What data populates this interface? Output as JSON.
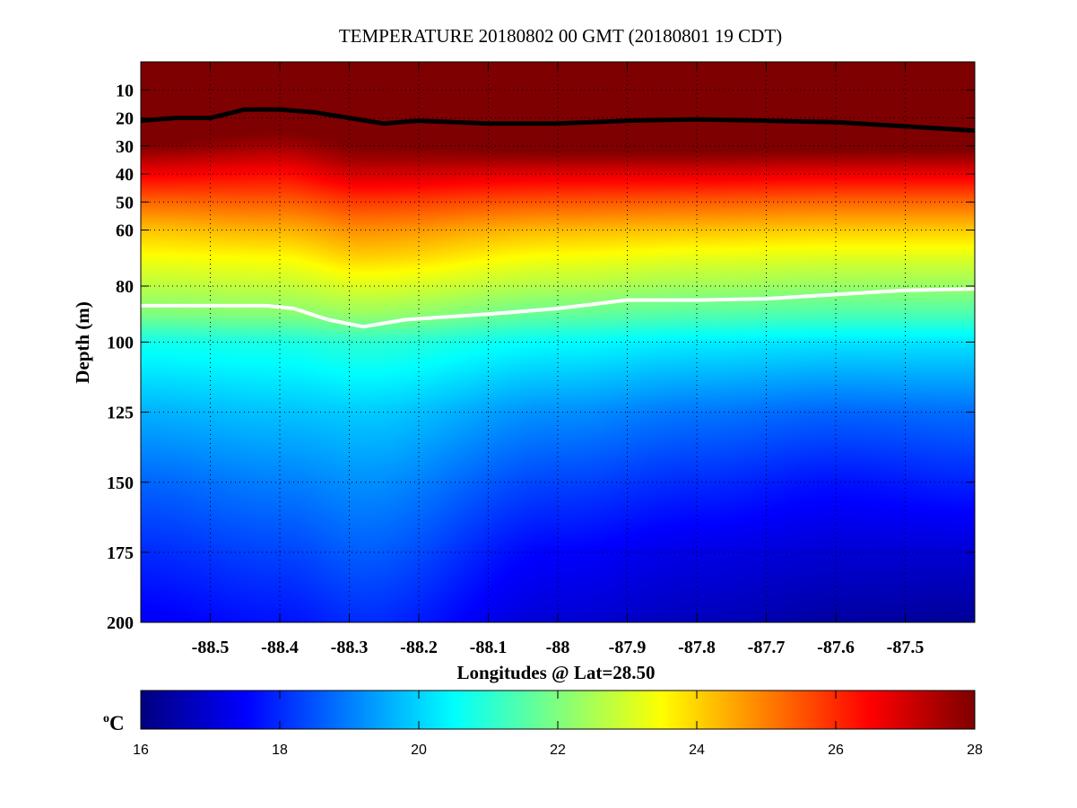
{
  "chart_data": {
    "type": "heatmap",
    "title": "TEMPERATURE 20180802 00 GMT (20180801 19 CDT)",
    "xlabel": "Longitudes @ Lat=28.50",
    "ylabel": "Depth (m)",
    "xlim": [
      -88.6,
      -87.4
    ],
    "ylim": [
      0,
      200
    ],
    "y_reversed": true,
    "grid": true,
    "xticks": [
      -88.5,
      -88.4,
      -88.3,
      -88.2,
      -88.1,
      -88,
      -87.9,
      -87.8,
      -87.7,
      -87.6,
      -87.5
    ],
    "xtick_labels": [
      "-88.5",
      "-88.4",
      "-88.3",
      "-88.2",
      "-88.1",
      "-88",
      "-87.9",
      "-87.8",
      "-87.7",
      "-87.6",
      "-87.5"
    ],
    "yticks": [
      10,
      20,
      30,
      40,
      50,
      60,
      80,
      100,
      125,
      150,
      175,
      200
    ],
    "ytick_labels": [
      "10",
      "20",
      "30",
      "40",
      "50",
      "60",
      "80",
      "100",
      "125",
      "150",
      "175",
      "200"
    ],
    "colorbar": {
      "label": "oC",
      "label_base": "C",
      "label_sup": "o",
      "range": [
        16,
        28
      ],
      "ticks": [
        16,
        18,
        20,
        22,
        24,
        26,
        28
      ],
      "tick_labels": [
        "16",
        "18",
        "20",
        "22",
        "24",
        "26",
        "28"
      ],
      "colormap": "jet",
      "location": "bottom"
    },
    "field": {
      "depths": [
        0,
        20,
        30,
        35,
        40,
        50,
        60,
        70,
        80,
        90,
        100,
        125,
        150,
        175,
        200
      ],
      "longitudes": [
        -88.6,
        -88.4,
        -88.28,
        -88.0,
        -87.8,
        -87.6,
        -87.4
      ],
      "temperature": [
        [
          28.5,
          28.4,
          28.0,
          27.3,
          26.6,
          25.3,
          24.2,
          23.4,
          22.7,
          22.0,
          20.7,
          19.6,
          18.7,
          18.0,
          17.4
        ],
        [
          28.5,
          28.4,
          27.6,
          27.0,
          26.4,
          25.4,
          24.4,
          23.5,
          22.8,
          22.1,
          20.8,
          19.8,
          19.0,
          18.3,
          17.7
        ],
        [
          28.5,
          28.4,
          28.0,
          27.6,
          27.0,
          25.8,
          24.8,
          24.0,
          23.1,
          22.3,
          21.0,
          19.9,
          19.2,
          18.6,
          18.0
        ],
        [
          28.5,
          28.4,
          28.2,
          27.6,
          26.8,
          25.5,
          24.3,
          23.4,
          22.6,
          21.7,
          20.5,
          19.2,
          18.3,
          17.5,
          17.0
        ],
        [
          28.5,
          28.4,
          28.2,
          27.6,
          26.8,
          25.4,
          24.2,
          23.2,
          22.4,
          21.5,
          20.3,
          18.9,
          18.0,
          17.2,
          16.7
        ],
        [
          28.5,
          28.4,
          28.2,
          27.5,
          26.7,
          25.3,
          24.1,
          23.1,
          22.3,
          21.4,
          20.2,
          18.7,
          17.7,
          17.0,
          16.4
        ],
        [
          28.5,
          28.4,
          28.2,
          27.5,
          26.7,
          25.3,
          24.1,
          23.1,
          22.3,
          21.4,
          20.2,
          18.8,
          17.9,
          17.0,
          16.3
        ]
      ]
    },
    "lines": [
      {
        "name": "black-contour",
        "color": "#000000",
        "lon": [
          -88.6,
          -88.55,
          -88.5,
          -88.45,
          -88.4,
          -88.35,
          -88.3,
          -88.25,
          -88.2,
          -88.1,
          -88.0,
          -87.9,
          -87.8,
          -87.7,
          -87.6,
          -87.5,
          -87.4
        ],
        "depth": [
          21,
          20,
          20,
          17,
          17,
          18,
          20,
          22,
          21,
          22,
          22,
          21,
          20.5,
          21,
          21.5,
          23,
          24.5
        ]
      },
      {
        "name": "white-contour",
        "color": "#ffffff",
        "lon": [
          -88.6,
          -88.5,
          -88.42,
          -88.38,
          -88.33,
          -88.28,
          -88.22,
          -88.1,
          -88.0,
          -87.9,
          -87.8,
          -87.7,
          -87.6,
          -87.5,
          -87.4
        ],
        "depth": [
          87,
          87,
          87,
          88,
          92,
          94.5,
          92,
          90,
          88,
          85,
          85,
          84.5,
          83,
          81.5,
          81
        ]
      }
    ]
  }
}
